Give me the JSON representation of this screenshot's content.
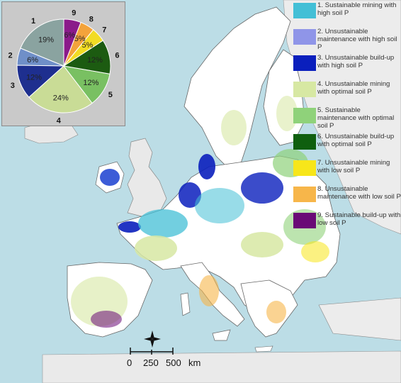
{
  "pie": {
    "slices": [
      {
        "number": "1",
        "pct_label": "19%",
        "value": 19,
        "color": "#8aa3a0"
      },
      {
        "number": "2",
        "pct_label": "6%",
        "value": 6,
        "color": "#6f8fc8"
      },
      {
        "number": "3",
        "pct_label": "12%",
        "value": 12,
        "color": "#1e2f8f"
      },
      {
        "number": "4",
        "pct_label": "24%",
        "value": 24,
        "color": "#c9dc96"
      },
      {
        "number": "5",
        "pct_label": "12%",
        "value": 12,
        "color": "#79c062"
      },
      {
        "number": "6",
        "pct_label": "12%",
        "value": 12,
        "color": "#1c5b11"
      },
      {
        "number": "7",
        "pct_label": "5%",
        "value": 5,
        "color": "#f2dc24"
      },
      {
        "number": "8",
        "pct_label": "5%",
        "value": 5,
        "color": "#f3a33b"
      },
      {
        "number": "9",
        "pct_label": "6%",
        "value": 6,
        "color": "#8a1a8a"
      }
    ]
  },
  "legend": [
    {
      "label": "1. Sustainable mining with high soil P",
      "color": "#43bfd6"
    },
    {
      "label": "2. Unsustainable maintenance with high soil P",
      "color": "#8f95e8"
    },
    {
      "label": "3. Unsustainable build-up with high soil P",
      "color": "#0a1fbd"
    },
    {
      "label": "4. Unsustainable mining with optimal soil P",
      "color": "#d7e8a3"
    },
    {
      "label": "5. Sustainable maintenance with optimal soil P",
      "color": "#8fd27a"
    },
    {
      "label": "6. Unsustainable build-up with optimal soil P",
      "color": "#0f5f0f"
    },
    {
      "label": "7. Unsustainable mining with low soil P",
      "color": "#f7e61a"
    },
    {
      "label": "8. Unsustainable maintenance with low soil P",
      "color": "#f7b64a"
    },
    {
      "label": "9. Sustainable build-up with low soil P",
      "color": "#6a0a76"
    }
  ],
  "scalebar": {
    "ticks": [
      "0",
      "250",
      "500"
    ],
    "unit": "km"
  },
  "colors": {
    "sea": "#bcdde6",
    "land": "#ffffff",
    "nonmap_land": "#eaeaea",
    "borders": "#666666"
  },
  "icons": {
    "north_arrow": "compass-star-icon"
  }
}
